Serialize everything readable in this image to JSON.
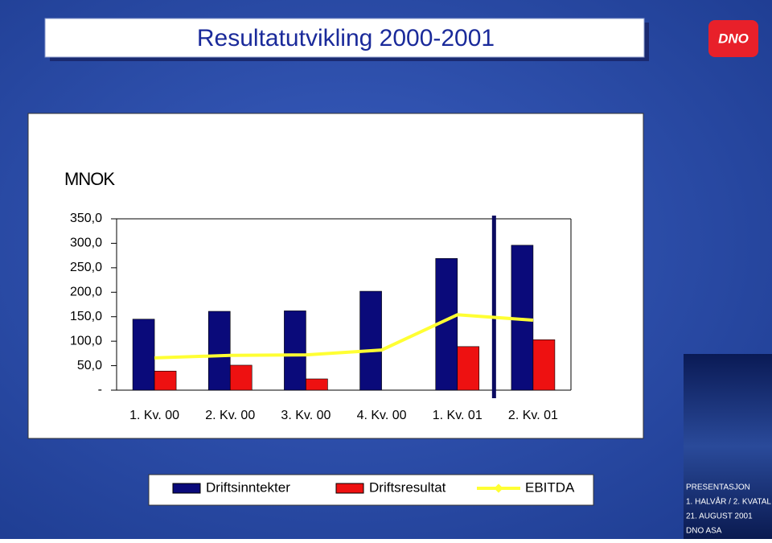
{
  "chart_data": {
    "type": "bar",
    "title": "Resultatutvikling 2000-2001",
    "unit_label": "MNOK",
    "categories": [
      "1. Kv. 00",
      "2. Kv. 00",
      "3. Kv. 00",
      "4. Kv. 00",
      "1. Kv. 01",
      "2. Kv. 01"
    ],
    "series": [
      {
        "name": "Driftsinntekter",
        "type": "bar",
        "color": "#0a0a7a",
        "values": [
          145,
          161,
          162,
          202,
          269,
          296
        ]
      },
      {
        "name": "Driftsresultat",
        "type": "bar",
        "color": "#ee1111",
        "values": [
          39,
          51,
          23,
          0,
          89,
          103
        ]
      },
      {
        "name": "EBITDA",
        "type": "line",
        "color": "#ffff33",
        "values": [
          66,
          71,
          72,
          82,
          154,
          143
        ]
      }
    ],
    "ylim": [
      0,
      350
    ],
    "yticks": [
      {
        "value": 0,
        "label": "-"
      },
      {
        "value": 50,
        "label": "50,0"
      },
      {
        "value": 100,
        "label": "100,0"
      },
      {
        "value": 150,
        "label": "150,0"
      },
      {
        "value": 200,
        "label": "200,0"
      },
      {
        "value": 250,
        "label": "250,0"
      },
      {
        "value": 300,
        "label": "300,0"
      },
      {
        "value": 350,
        "label": "350,0"
      }
    ],
    "legend": "bottom"
  },
  "slide": {
    "logo": "DNO",
    "footer": [
      "PRESENTASJON",
      "1. HALVÅR / 2. KVATAL",
      "21. AUGUST 2001",
      "DNO ASA"
    ]
  }
}
